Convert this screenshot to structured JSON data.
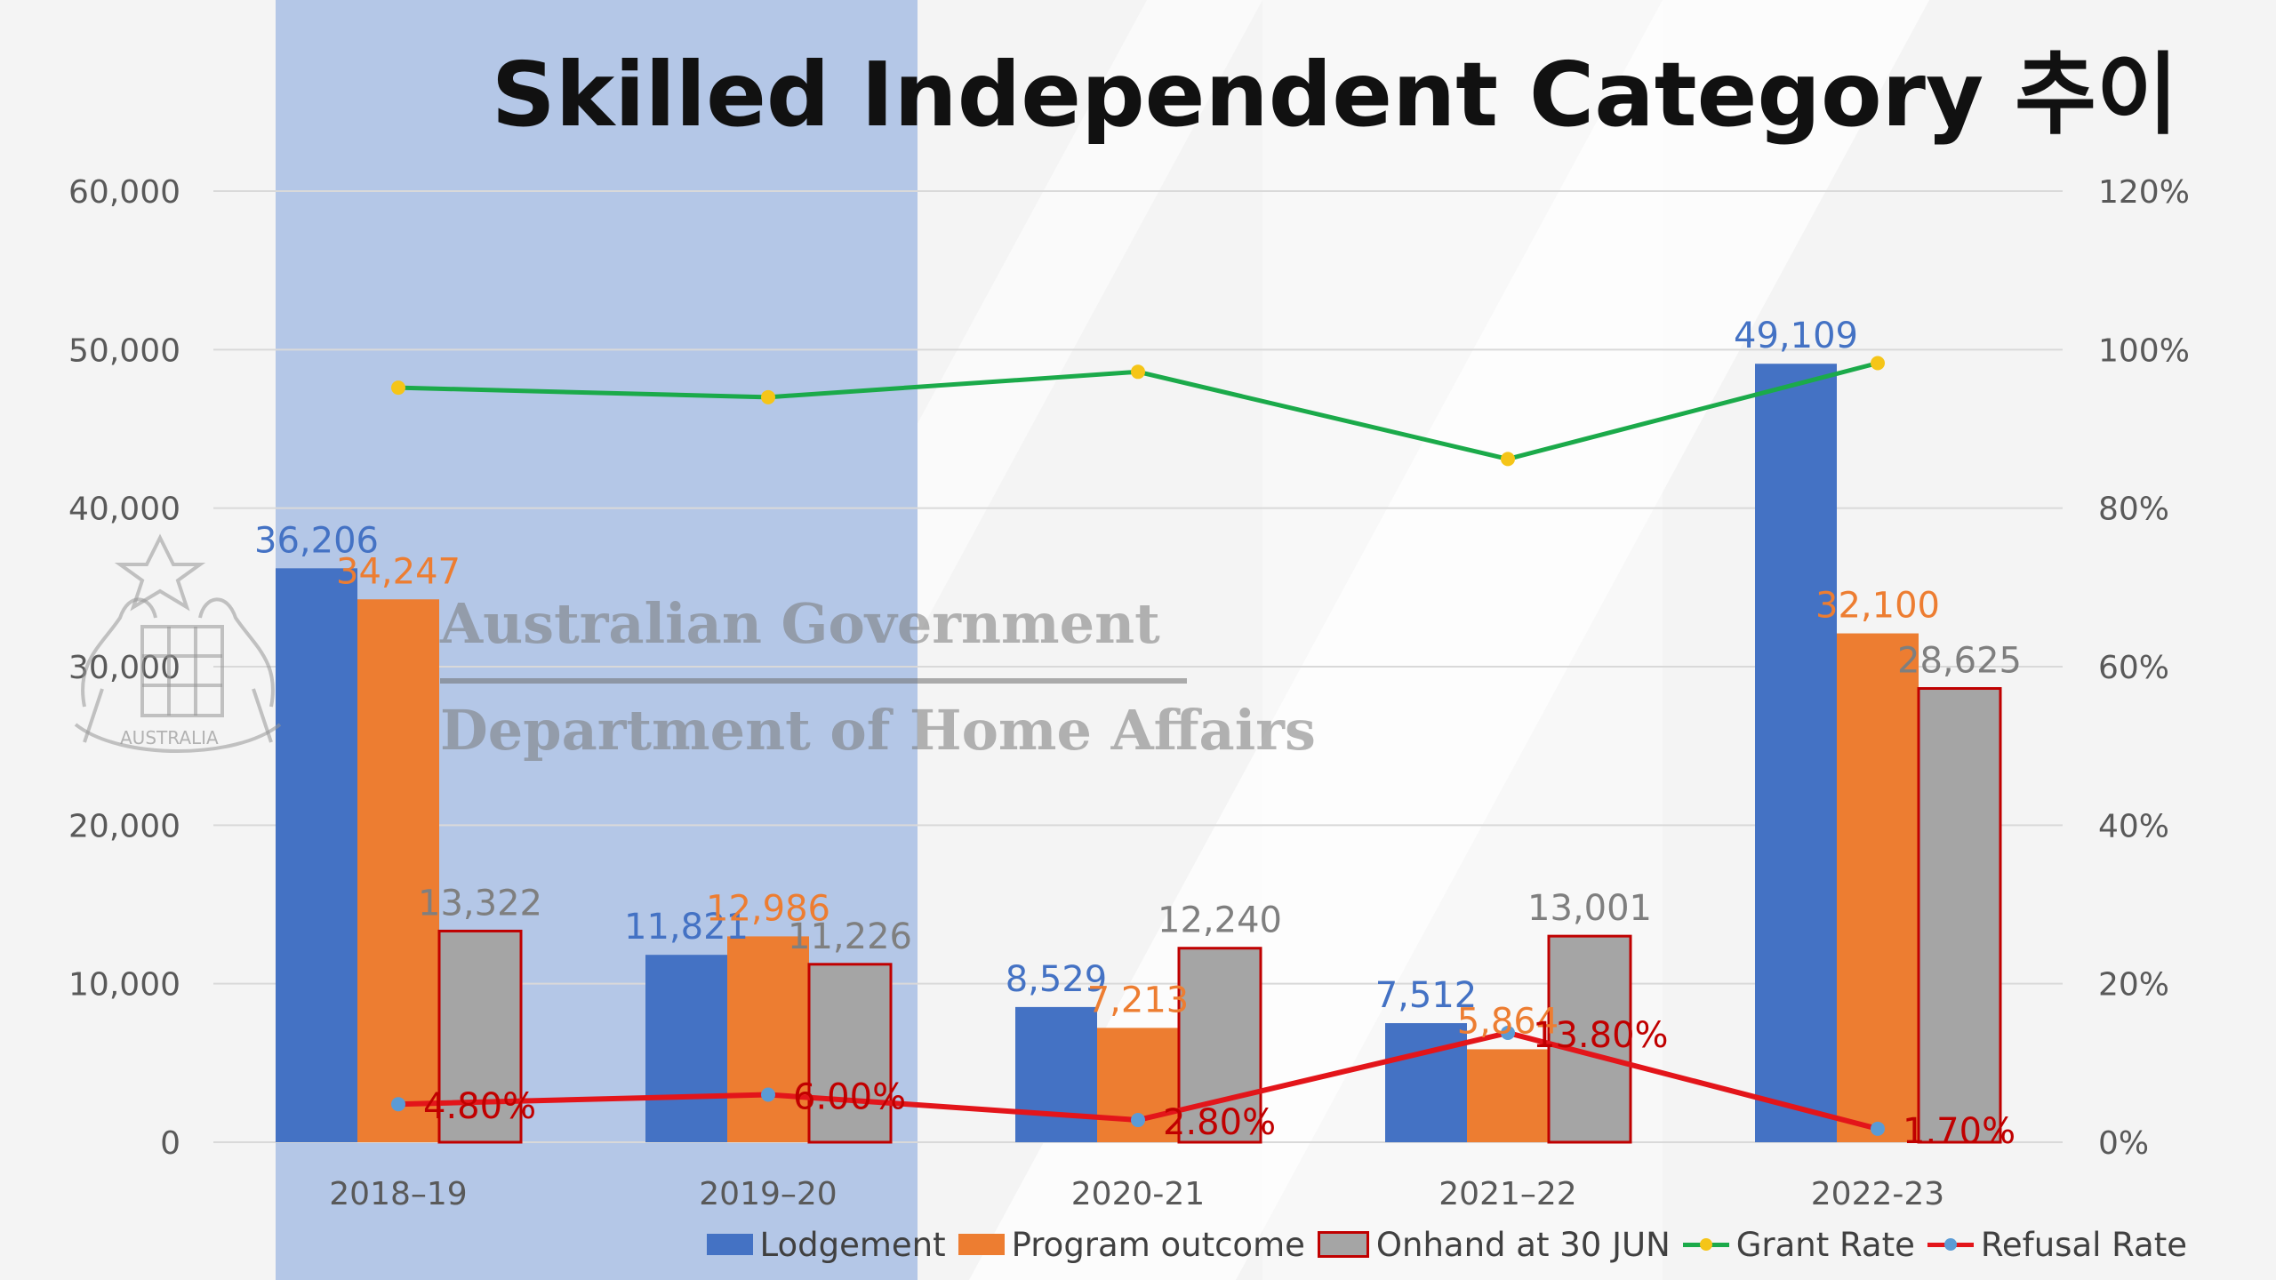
{
  "title": "Skilled Independent Category 추이",
  "watermark": {
    "line1": "Australian Government",
    "line2": "Department of Home Affairs",
    "crest_text": "AUSTRALIA"
  },
  "colors": {
    "lodgement": "#4472C4",
    "program_outcome": "#ED7D31",
    "onhand": "#A5A5A5",
    "onhand_border": "#C00000",
    "grant_rate_line": "#1BAA4A",
    "grant_rate_marker": "#F5C518",
    "refusal_rate_line": "#E3151A",
    "refusal_rate_marker": "#5B9BD5",
    "highlight": "#B4C7E7",
    "axis_text": "#595959",
    "grid": "#D9D9D9"
  },
  "legend": [
    {
      "key": "lodgement",
      "label": "Lodgement",
      "kind": "bar"
    },
    {
      "key": "program_outcome",
      "label": "Program outcome",
      "kind": "bar"
    },
    {
      "key": "onhand",
      "label": "Onhand at 30 JUN",
      "kind": "bar"
    },
    {
      "key": "grant_rate",
      "label": "Grant Rate",
      "kind": "line"
    },
    {
      "key": "refusal_rate",
      "label": "Refusal Rate",
      "kind": "line"
    }
  ],
  "chart_data": {
    "type": "bar",
    "categories": [
      "2018–19",
      "2019–20",
      "2020-21",
      "2021–22",
      "2022-23"
    ],
    "ylim": [
      0,
      60000
    ],
    "yticks": [
      "0",
      "10,000",
      "20,000",
      "30,000",
      "40,000",
      "50,000",
      "60,000"
    ],
    "y2lim": [
      0,
      120
    ],
    "y2ticks": [
      "0%",
      "20%",
      "40%",
      "60%",
      "80%",
      "100%",
      "120%"
    ],
    "grid": true,
    "legend_position": "bottom-right",
    "highlighted_categories": [
      0,
      1
    ],
    "series": [
      {
        "name": "Lodgement",
        "key": "lodgement",
        "type": "bar",
        "values": [
          36206,
          11821,
          8529,
          7512,
          49109
        ],
        "labels": [
          "36,206",
          "11,821",
          "8,529",
          "7,512",
          "49,109"
        ]
      },
      {
        "name": "Program outcome",
        "key": "program_outcome",
        "type": "bar",
        "values": [
          34247,
          12986,
          7213,
          5864,
          32100
        ],
        "labels": [
          "34,247",
          "12,986",
          "7,213",
          "5,864",
          "32,100"
        ]
      },
      {
        "name": "Onhand at 30 JUN",
        "key": "onhand",
        "type": "bar",
        "values": [
          13322,
          11226,
          12240,
          13001,
          28625
        ],
        "labels": [
          "13,322",
          "11,226",
          "12,240",
          "13,001",
          "28,625"
        ]
      },
      {
        "name": "Grant Rate",
        "key": "grant_rate",
        "type": "line",
        "axis": "secondary",
        "values": [
          95.2,
          94.0,
          97.2,
          86.2,
          98.3
        ]
      },
      {
        "name": "Refusal Rate",
        "key": "refusal_rate",
        "type": "line",
        "axis": "secondary",
        "values": [
          4.8,
          6.0,
          2.8,
          13.8,
          1.7
        ],
        "labels": [
          "4.80%",
          "6.00%",
          "2.80%",
          "13.80%",
          "1.70%"
        ]
      }
    ]
  }
}
